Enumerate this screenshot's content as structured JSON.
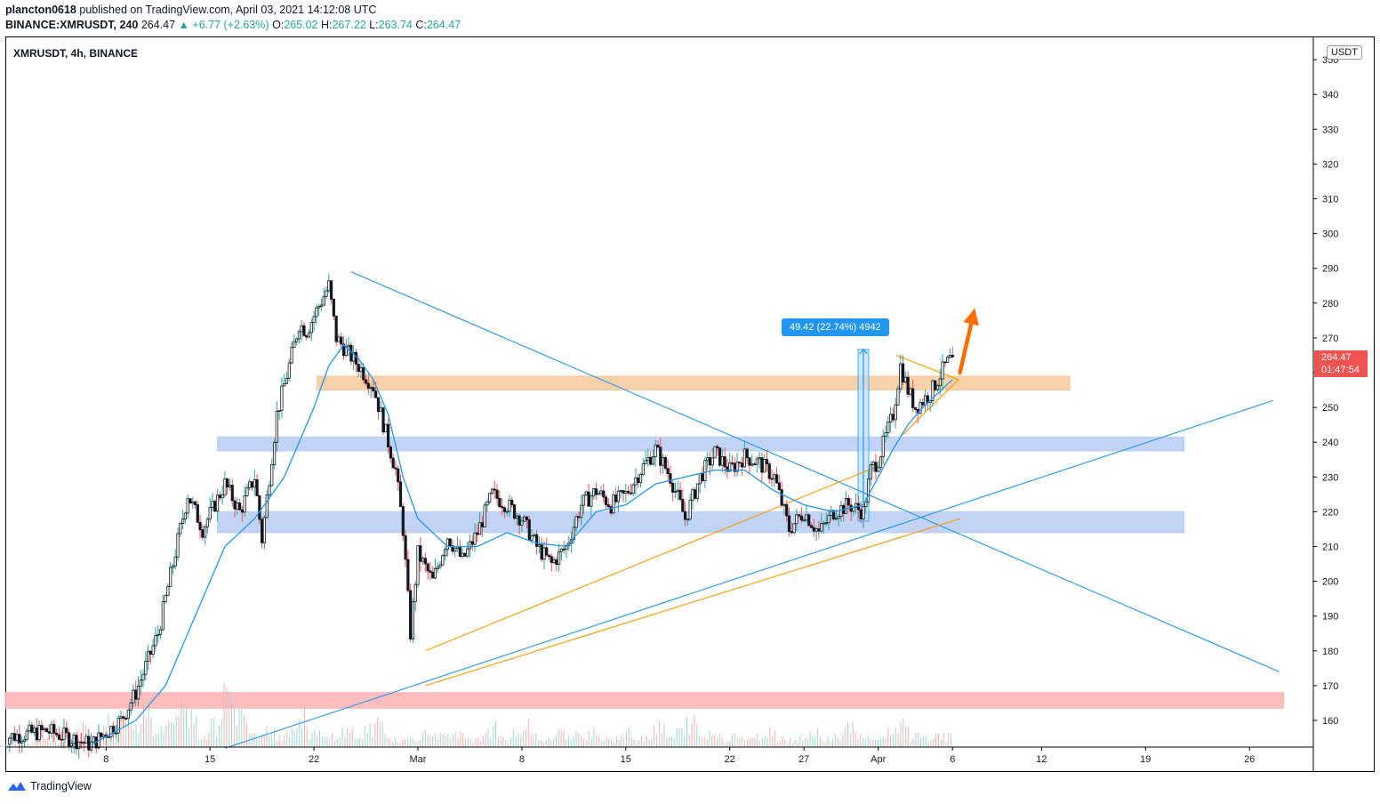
{
  "header": {
    "publisher": "plancton0618",
    "published_text": "published on TradingView.com, April 03, 2021 14:12:08 UTC",
    "symbol": "BINANCE:XMRUSDT, 240",
    "last": "264.47",
    "change": "+6.77 (+2.63%)",
    "o_label": "O:",
    "o": "265.02",
    "h_label": "H:",
    "h": "267.22",
    "l_label": "L:",
    "l": "263.74",
    "c_label": "C:",
    "c": "264.47"
  },
  "chart_label": "XMRUSDT, 4h, BINANCE",
  "unit": "USDT",
  "price_tag": {
    "price": "264.47",
    "countdown": "01:47:54"
  },
  "measure_tag": "49.42 (22.74%) 4942",
  "footer": {
    "brand": "TradingView"
  },
  "colors": {
    "up": "#26a69a",
    "down": "#ef5350",
    "candle": "#131722",
    "trend_blue": "#2196f3",
    "trend_orange": "#ff9800",
    "zone_orange": "#f6c99a",
    "zone_blue": "#b7cdf5",
    "zone_red": "#ffb3b3",
    "ma": "#2196f3",
    "arrow": "#ff6d00"
  },
  "chart_data": {
    "type": "candlestick",
    "title": "XMRUSDT, 4h, BINANCE",
    "ylabel": "USDT",
    "ylim": [
      152,
      353
    ],
    "y_ticks": [
      160,
      170,
      180,
      190,
      200,
      210,
      220,
      230,
      240,
      250,
      260,
      270,
      280,
      290,
      300,
      310,
      320,
      330,
      340,
      350
    ],
    "x_ticks": [
      "8",
      "15",
      "22",
      "Mar",
      "8",
      "15",
      "22",
      "27",
      "Apr",
      "6",
      "12",
      "19",
      "26"
    ],
    "x_tick_days": [
      -21,
      -14,
      -7,
      0,
      7,
      14,
      21,
      26,
      31,
      36,
      42,
      49,
      56
    ],
    "close_path": [
      [
        -28.0,
        155
      ],
      [
        -25.0,
        157
      ],
      [
        -22.0,
        153
      ],
      [
        -20.0,
        160
      ],
      [
        -19.0,
        168
      ],
      [
        -17.5,
        185
      ],
      [
        -16.5,
        205
      ],
      [
        -15.5,
        225
      ],
      [
        -14.5,
        215
      ],
      [
        -13.0,
        228
      ],
      [
        -12.0,
        220
      ],
      [
        -11.0,
        230
      ],
      [
        -10.5,
        212
      ],
      [
        -9.5,
        248
      ],
      [
        -8.5,
        265
      ],
      [
        -8.0,
        274
      ],
      [
        -7.5,
        272
      ],
      [
        -6.0,
        285
      ],
      [
        -5.5,
        270
      ],
      [
        -4.0,
        262
      ],
      [
        -3.0,
        256
      ],
      [
        -2.5,
        248
      ],
      [
        -1.5,
        232
      ],
      [
        -1.0,
        215
      ],
      [
        -0.5,
        185
      ],
      [
        0.0,
        208
      ],
      [
        1.0,
        200
      ],
      [
        2.0,
        213
      ],
      [
        3.0,
        206
      ],
      [
        4.0,
        214
      ],
      [
        5.0,
        225
      ],
      [
        6.0,
        222
      ],
      [
        7.0,
        218
      ],
      [
        8.0,
        210
      ],
      [
        9.0,
        205
      ],
      [
        10.0,
        210
      ],
      [
        11.0,
        222
      ],
      [
        12.0,
        226
      ],
      [
        13.0,
        222
      ],
      [
        14.0,
        225
      ],
      [
        15.0,
        232
      ],
      [
        16.0,
        238
      ],
      [
        17.0,
        230
      ],
      [
        18.0,
        218
      ],
      [
        19.0,
        230
      ],
      [
        20.0,
        237
      ],
      [
        21.0,
        232
      ],
      [
        22.0,
        236
      ],
      [
        23.0,
        234
      ],
      [
        24.0,
        230
      ],
      [
        25.0,
        215
      ],
      [
        26.0,
        220
      ],
      [
        27.0,
        214
      ],
      [
        28.0,
        220
      ],
      [
        29.0,
        222
      ],
      [
        30.0,
        220
      ],
      [
        30.5,
        232
      ],
      [
        31.0,
        235
      ],
      [
        32.0,
        248
      ],
      [
        32.5,
        262
      ],
      [
        33.0,
        255
      ],
      [
        33.5,
        250
      ],
      [
        34.0,
        252
      ],
      [
        34.5,
        254
      ],
      [
        35.0,
        258
      ],
      [
        35.5,
        262
      ],
      [
        36.0,
        264.5
      ]
    ],
    "ma_path": [
      [
        -22.0,
        153
      ],
      [
        -19.0,
        160
      ],
      [
        -17.0,
        170
      ],
      [
        -15.0,
        190
      ],
      [
        -13.0,
        210
      ],
      [
        -11.0,
        218
      ],
      [
        -9.0,
        230
      ],
      [
        -7.0,
        250
      ],
      [
        -6.0,
        262
      ],
      [
        -5.0,
        268
      ],
      [
        -4.0,
        264
      ],
      [
        -3.0,
        258
      ],
      [
        -2.0,
        248
      ],
      [
        -1.0,
        230
      ],
      [
        0.0,
        218
      ],
      [
        2.0,
        210
      ],
      [
        4.0,
        210
      ],
      [
        6.0,
        214
      ],
      [
        8.0,
        211
      ],
      [
        10.0,
        210
      ],
      [
        12.0,
        220
      ],
      [
        14.0,
        222
      ],
      [
        16.0,
        228
      ],
      [
        18.0,
        230
      ],
      [
        20.0,
        232
      ],
      [
        22.0,
        232
      ],
      [
        24.0,
        226
      ],
      [
        26.0,
        222
      ],
      [
        28.0,
        220
      ],
      [
        30.0,
        222
      ],
      [
        31.0,
        230
      ],
      [
        32.0,
        238
      ],
      [
        33.0,
        245
      ],
      [
        34.0,
        250
      ],
      [
        35.0,
        254
      ],
      [
        36.0,
        258
      ]
    ],
    "current_price": 264.47,
    "zones": [
      {
        "name": "resistance-zone-orange",
        "from_day": -6.8,
        "to_day": 43.9,
        "low": 255,
        "high": 259,
        "color": "#f6c99a"
      },
      {
        "name": "zone-blue-upper",
        "from_day": -13.5,
        "to_day": 51.6,
        "low": 237.5,
        "high": 241.5,
        "color": "#b7cdf5"
      },
      {
        "name": "zone-blue-lower",
        "from_day": -13.5,
        "to_day": 51.6,
        "low": 214,
        "high": 220,
        "color": "#b7cdf5"
      },
      {
        "name": "support-zone-red",
        "from_day": -28.5,
        "to_day": 58.3,
        "low": 163.5,
        "high": 168,
        "color": "#ffb3b3"
      }
    ],
    "trendlines": [
      {
        "name": "descending-trendline",
        "color": "#2196f3",
        "from": [
          -4.5,
          289
        ],
        "to": [
          58.0,
          174
        ]
      },
      {
        "name": "ascending-trendline-blue",
        "color": "#2196f3",
        "from": [
          -13.0,
          152
        ],
        "to": [
          57.6,
          252
        ]
      },
      {
        "name": "ascending-trendline-orange-lower",
        "color": "#ff9800",
        "from": [
          0.5,
          170
        ],
        "to": [
          36.5,
          218
        ]
      },
      {
        "name": "ascending-trendline-orange-upper",
        "color": "#ff9800",
        "from": [
          0.5,
          180
        ],
        "to": [
          31.5,
          234
        ]
      },
      {
        "name": "pennant-upper",
        "color": "#ff9800",
        "from": [
          32.2,
          265
        ],
        "to": [
          36.4,
          258
        ]
      },
      {
        "name": "pennant-lower",
        "color": "#ff9800",
        "from": [
          32.6,
          242
        ],
        "to": [
          36.4,
          258
        ]
      }
    ],
    "measure": {
      "day": 30.0,
      "from": 217.3,
      "to": 266.7
    },
    "projection_arrow": {
      "from": [
        36.5,
        260
      ],
      "to": [
        37.5,
        278.5
      ]
    },
    "volume_heights": [
      12,
      18,
      9,
      22,
      30,
      14,
      40,
      55,
      25,
      70,
      35,
      95,
      60,
      140,
      45,
      80,
      120,
      90,
      35,
      60,
      150,
      105,
      75,
      40,
      65,
      30,
      55,
      85,
      40,
      25,
      35,
      45,
      30,
      50,
      70,
      25,
      20,
      30,
      38,
      45,
      28,
      35,
      20,
      30,
      55,
      25,
      38,
      60,
      30,
      20,
      45,
      25,
      35,
      50,
      30,
      22,
      40,
      28,
      35,
      55,
      30,
      45,
      70,
      30,
      40,
      25,
      35,
      22,
      30,
      45,
      28,
      20,
      33,
      40,
      25,
      30,
      55,
      35,
      22,
      30,
      45,
      70,
      30,
      25,
      40,
      30
    ]
  }
}
